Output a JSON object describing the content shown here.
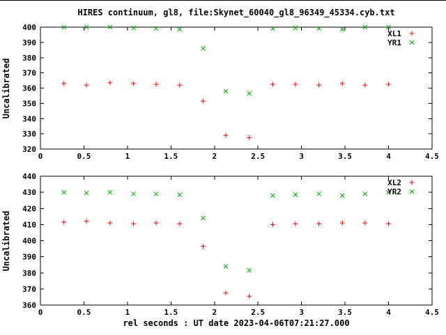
{
  "title": "HIRES continuum, gl8, file:Skynet_60040_gl8_96349_45334.cyb.txt",
  "xlabel": "rel seconds : UT date 2023-04-06T07:21:27.000",
  "colors": {
    "xl_series": "#ff0000",
    "yr_series": "#00aa00",
    "axis": "#000000",
    "background": "#ffffff"
  },
  "chart_data": [
    {
      "type": "scatter",
      "ylabel": "Uncalibrated",
      "xlim": [
        0,
        4.5
      ],
      "ylim": [
        320,
        400
      ],
      "xtick_step": 0.5,
      "ytick_step": 10,
      "grid": false,
      "legend_position": "top-right",
      "x": [
        0.27,
        0.53,
        0.8,
        1.07,
        1.33,
        1.6,
        1.87,
        2.13,
        2.4,
        2.67,
        2.93,
        3.2,
        3.47,
        3.73,
        4.0
      ],
      "series": [
        {
          "name": "XL1",
          "marker": "plus",
          "color": "#ff0000",
          "values": [
            363,
            362,
            363.5,
            363,
            362.5,
            362,
            351.5,
            329,
            327.5,
            362.5,
            362.5,
            362,
            363,
            362,
            362.5
          ]
        },
        {
          "name": "YR1",
          "marker": "cross",
          "color": "#00aa00",
          "values": [
            400,
            400,
            400,
            399.5,
            399,
            398.5,
            386,
            358,
            356.5,
            399,
            399.5,
            399,
            398.5,
            400,
            400
          ]
        }
      ]
    },
    {
      "type": "scatter",
      "ylabel": "Uncalibrated",
      "xlim": [
        0,
        4.5
      ],
      "ylim": [
        360,
        440
      ],
      "xtick_step": 0.5,
      "ytick_step": 10,
      "grid": false,
      "legend_position": "top-right",
      "x": [
        0.27,
        0.53,
        0.8,
        1.07,
        1.33,
        1.6,
        1.87,
        2.13,
        2.4,
        2.67,
        2.93,
        3.2,
        3.47,
        3.73,
        4.0
      ],
      "series": [
        {
          "name": "XL2",
          "marker": "plus",
          "color": "#ff0000",
          "values": [
            411.5,
            412,
            411,
            410.5,
            411,
            410.5,
            396.5,
            367.5,
            365.5,
            410,
            410.5,
            410.5,
            411,
            411,
            410.5
          ]
        },
        {
          "name": "YR2",
          "marker": "cross",
          "color": "#00aa00",
          "values": [
            430,
            429.5,
            430,
            429,
            429,
            428.5,
            414,
            384,
            381.5,
            428,
            428.5,
            429,
            428,
            429,
            430
          ]
        }
      ]
    }
  ]
}
